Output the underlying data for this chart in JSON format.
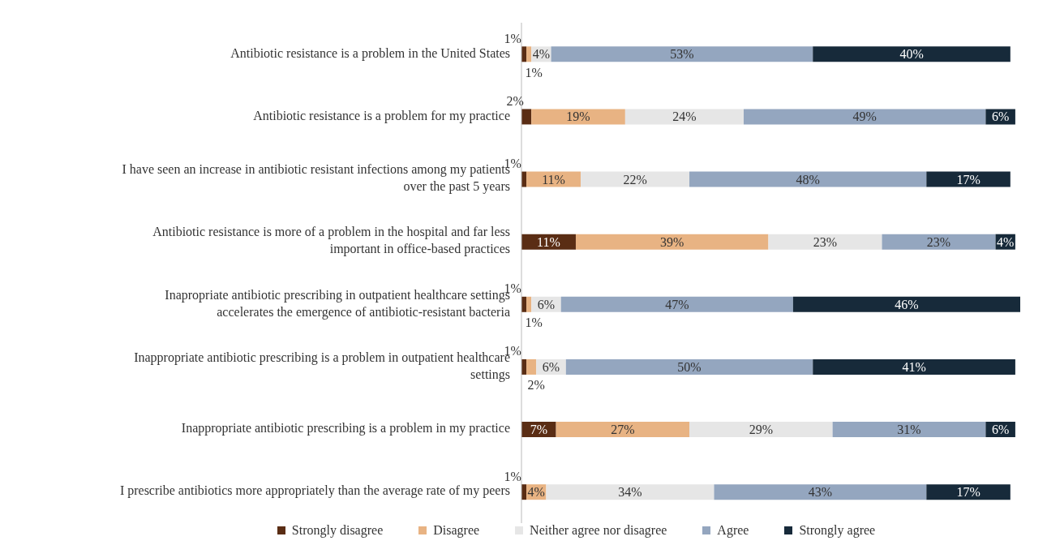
{
  "chart_data": {
    "type": "bar",
    "orientation": "horizontal",
    "stacked": true,
    "legend": "bottom",
    "tick_labels": "y",
    "categories": [
      "Antibiotic resistance is a problem in the United States",
      "Antibiotic resistance is a problem for my practice",
      "I have seen an increase in antibiotic resistant infections among my patients over the past 5 years",
      "Antibiotic resistance is more of a problem in the hospital and far less important in office-based practices",
      "Inapropriate antibiotic prescribing in outpatient healthcare settings accelerates the emergence of antibiotic-resistant bacteria",
      "Inappropriate antibiotic prescribing is a problem in outpatient healthcare settings",
      "Inappropriate antibiotic prescribing is a problem in my practice",
      "I prescribe antibiotics more appropriately than the average rate of my peers"
    ],
    "series": [
      {
        "name": "Strongly disagree",
        "color": "#5a2d14",
        "values": [
          1,
          2,
          1,
          11,
          1,
          1,
          7,
          1
        ],
        "value_labels": [
          "1%",
          "2%",
          "1%",
          "11%",
          "1%",
          "1%",
          "7%",
          "1%"
        ]
      },
      {
        "name": "Disagree",
        "color": "#e8b383",
        "values": [
          1,
          19,
          11,
          39,
          1,
          2,
          27,
          4
        ],
        "value_labels": [
          "1%",
          "19%",
          "11%",
          "39%",
          "1%",
          "2%",
          "27%",
          "4%"
        ]
      },
      {
        "name": "Neither agree nor disagree",
        "color": "#e6e6e6",
        "values": [
          4,
          24,
          22,
          23,
          6,
          6,
          29,
          34
        ],
        "value_labels": [
          "4%",
          "24%",
          "22%",
          "23%",
          "6%",
          "6%",
          "29%",
          "34%"
        ]
      },
      {
        "name": "Agree",
        "color": "#94a6bf",
        "values": [
          53,
          49,
          48,
          23,
          47,
          50,
          31,
          43
        ],
        "value_labels": [
          "53%",
          "49%",
          "48%",
          "23%",
          "47%",
          "50%",
          "31%",
          "43%"
        ]
      },
      {
        "name": "Strongly agree",
        "color": "#172a3a",
        "values": [
          40,
          6,
          17,
          4,
          46,
          41,
          6,
          17
        ],
        "value_labels": [
          "40%",
          "6%",
          "17%",
          "4%",
          "46%",
          "41%",
          "6%",
          "17%"
        ]
      }
    ]
  }
}
